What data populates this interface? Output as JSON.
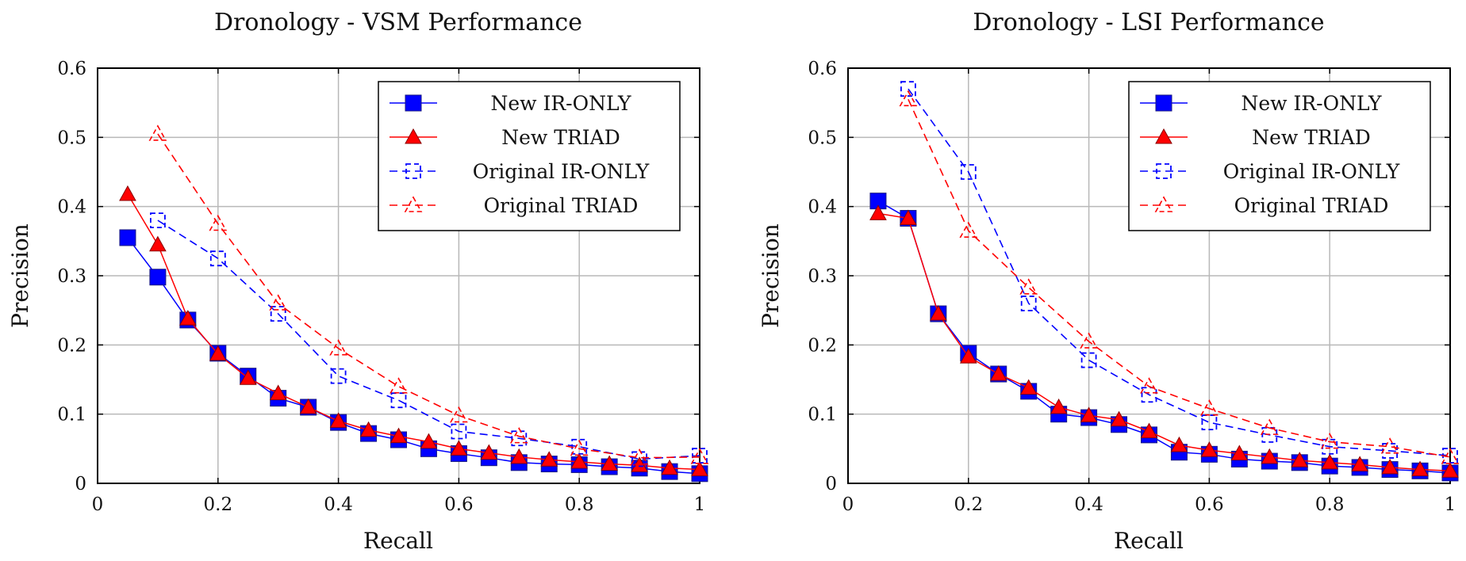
{
  "chart_data": [
    {
      "type": "line",
      "title": "Dronology - VSM Performance",
      "xlabel": "Recall",
      "ylabel": "Precision",
      "xlim": [
        0,
        1
      ],
      "ylim": [
        0,
        0.6
      ],
      "xticks": [
        "0",
        "0.2",
        "0.4",
        "0.6",
        "0.8",
        "1"
      ],
      "yticks": [
        "0",
        "0.1",
        "0.2",
        "0.3",
        "0.4",
        "0.5",
        "0.6"
      ],
      "grid": true,
      "legend_position": "top-right",
      "series": [
        {
          "name": "New IR-ONLY",
          "x": [
            0.05,
            0.1,
            0.15,
            0.2,
            0.25,
            0.3,
            0.35,
            0.4,
            0.45,
            0.5,
            0.55,
            0.6,
            0.65,
            0.7,
            0.75,
            0.8,
            0.85,
            0.9,
            0.95,
            1.0
          ],
          "y": [
            0.355,
            0.298,
            0.236,
            0.188,
            0.155,
            0.123,
            0.11,
            0.088,
            0.072,
            0.063,
            0.05,
            0.043,
            0.037,
            0.03,
            0.028,
            0.027,
            0.024,
            0.022,
            0.017,
            0.014
          ]
        },
        {
          "name": "New TRIAD",
          "x": [
            0.05,
            0.1,
            0.15,
            0.2,
            0.25,
            0.3,
            0.35,
            0.4,
            0.45,
            0.5,
            0.55,
            0.6,
            0.65,
            0.7,
            0.75,
            0.8,
            0.85,
            0.9,
            0.95,
            1.0
          ],
          "y": [
            0.418,
            0.345,
            0.238,
            0.187,
            0.152,
            0.13,
            0.11,
            0.09,
            0.077,
            0.068,
            0.06,
            0.05,
            0.044,
            0.038,
            0.034,
            0.031,
            0.028,
            0.026,
            0.022,
            0.02
          ]
        },
        {
          "name": "Original IR-ONLY",
          "x": [
            0.1,
            0.2,
            0.3,
            0.4,
            0.5,
            0.6,
            0.7,
            0.8,
            0.9,
            1.0
          ],
          "y": [
            0.38,
            0.325,
            0.245,
            0.155,
            0.12,
            0.075,
            0.065,
            0.053,
            0.035,
            0.04
          ]
        },
        {
          "name": "Original TRIAD",
          "x": [
            0.1,
            0.2,
            0.3,
            0.4,
            0.5,
            0.6,
            0.7,
            0.8,
            0.9,
            1.0
          ],
          "y": [
            0.505,
            0.375,
            0.26,
            0.195,
            0.14,
            0.098,
            0.068,
            0.05,
            0.037,
            0.038
          ]
        }
      ]
    },
    {
      "type": "line",
      "title": "Dronology - LSI Performance",
      "xlabel": "Recall",
      "ylabel": "Precision",
      "xlim": [
        0,
        1
      ],
      "ylim": [
        0,
        0.6
      ],
      "xticks": [
        "0",
        "0.2",
        "0.4",
        "0.6",
        "0.8",
        "1"
      ],
      "yticks": [
        "0",
        "0.1",
        "0.2",
        "0.3",
        "0.4",
        "0.5",
        "0.6"
      ],
      "grid": true,
      "legend_position": "top-right",
      "series": [
        {
          "name": "New IR-ONLY",
          "x": [
            0.05,
            0.1,
            0.15,
            0.2,
            0.25,
            0.3,
            0.35,
            0.4,
            0.45,
            0.5,
            0.55,
            0.6,
            0.65,
            0.7,
            0.75,
            0.8,
            0.85,
            0.9,
            0.95,
            1.0
          ],
          "y": [
            0.408,
            0.383,
            0.245,
            0.188,
            0.158,
            0.133,
            0.1,
            0.095,
            0.085,
            0.07,
            0.045,
            0.042,
            0.035,
            0.032,
            0.03,
            0.025,
            0.023,
            0.02,
            0.018,
            0.015
          ]
        },
        {
          "name": "New TRIAD",
          "x": [
            0.05,
            0.1,
            0.15,
            0.2,
            0.25,
            0.3,
            0.35,
            0.4,
            0.45,
            0.5,
            0.55,
            0.6,
            0.65,
            0.7,
            0.75,
            0.8,
            0.85,
            0.9,
            0.95,
            1.0
          ],
          "y": [
            0.39,
            0.383,
            0.245,
            0.183,
            0.158,
            0.138,
            0.11,
            0.098,
            0.092,
            0.075,
            0.055,
            0.048,
            0.043,
            0.038,
            0.033,
            0.03,
            0.027,
            0.023,
            0.02,
            0.018
          ]
        },
        {
          "name": "Original IR-ONLY",
          "x": [
            0.1,
            0.2,
            0.3,
            0.4,
            0.5,
            0.6,
            0.7,
            0.8,
            0.9,
            1.0
          ],
          "y": [
            0.57,
            0.45,
            0.26,
            0.178,
            0.128,
            0.088,
            0.07,
            0.053,
            0.047,
            0.04
          ]
        },
        {
          "name": "Original TRIAD",
          "x": [
            0.1,
            0.2,
            0.3,
            0.4,
            0.5,
            0.6,
            0.7,
            0.8,
            0.9,
            1.0
          ],
          "y": [
            0.555,
            0.365,
            0.283,
            0.205,
            0.14,
            0.108,
            0.08,
            0.06,
            0.053,
            0.038
          ]
        }
      ]
    }
  ],
  "series_styles": [
    {
      "color": "#0000ff",
      "marker": "square",
      "dashed": false
    },
    {
      "color": "#ff0000",
      "marker": "triangle",
      "dashed": false
    },
    {
      "color": "#0000ff",
      "marker": "square-open",
      "dashed": true
    },
    {
      "color": "#ff0000",
      "marker": "triangle-open",
      "dashed": true
    }
  ]
}
